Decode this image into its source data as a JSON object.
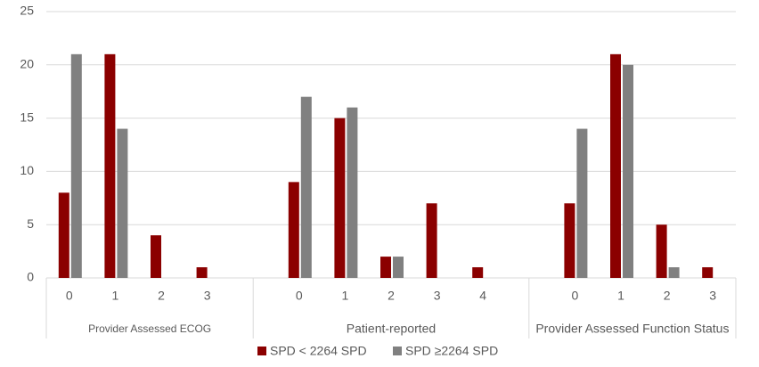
{
  "chart_data": {
    "type": "bar",
    "categories": [
      "0",
      "1",
      "2",
      "3",
      null,
      "0",
      "1",
      "2",
      "3",
      "4",
      null,
      "0",
      "1",
      "2",
      "3"
    ],
    "groups": [
      "Provider Assessed ECOG",
      "Patient-reported",
      "Provider Assessed Function Status"
    ],
    "series": [
      {
        "name": "SPD < 2264 SPD",
        "color": "#8b0000",
        "values": [
          8,
          21,
          4,
          1,
          null,
          9,
          15,
          2,
          7,
          1,
          null,
          7,
          21,
          5,
          1
        ]
      },
      {
        "name": "SPD ≥2264 SPD",
        "color": "#808080",
        "values": [
          21,
          14,
          0,
          0,
          null,
          17,
          16,
          2,
          0,
          0,
          null,
          14,
          20,
          1,
          0
        ]
      }
    ],
    "ylim": [
      0,
      25
    ],
    "yticks": [
      0,
      5,
      10,
      15,
      20,
      25
    ],
    "grid": true,
    "legend": "bottom"
  }
}
